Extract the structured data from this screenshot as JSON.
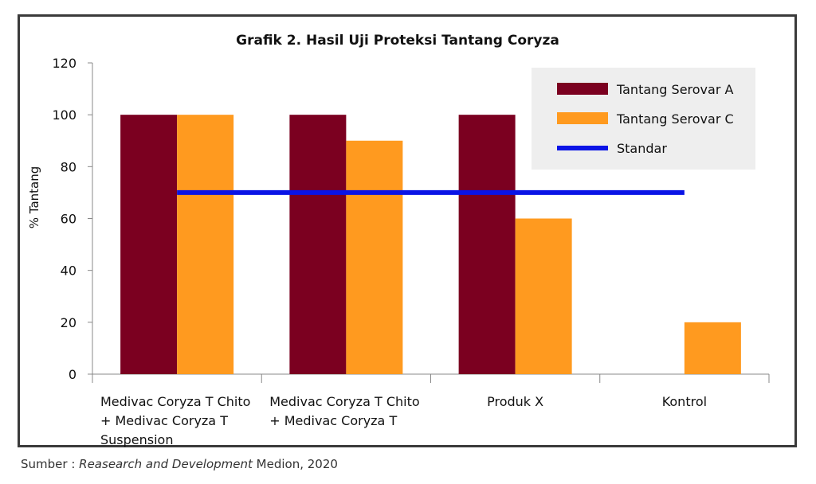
{
  "source": {
    "prefix": "Sumber : ",
    "italic": "Reasearch and Development",
    "suffix": " Medion, 2020"
  },
  "chart_data": {
    "type": "bar",
    "title": "Grafik 2. Hasil Uji Proteksi Tantang Coryza",
    "xlabel": "",
    "ylabel": "% Tantang",
    "ylim": [
      0,
      120
    ],
    "yticks": [
      0,
      20,
      40,
      60,
      80,
      100,
      120
    ],
    "categories": [
      [
        "Medivac Coryza T Chito",
        "+ Medivac Coryza T",
        "Suspension"
      ],
      [
        "Medivac Coryza T Chito",
        "+ Medivac Coryza T"
      ],
      [
        "Produk X"
      ],
      [
        "Kontrol"
      ]
    ],
    "series": [
      {
        "name": "Tantang Serovar A",
        "color": "#7b0020",
        "values": [
          100,
          100,
          100,
          0
        ]
      },
      {
        "name": "Tantang Serovar C",
        "color": "#ff9a1f",
        "values": [
          100,
          90,
          60,
          20
        ]
      }
    ],
    "reference_line": {
      "name": "Standar",
      "color": "#0a14e6",
      "value": 70
    },
    "legend_position": "top-right",
    "grid": false
  }
}
